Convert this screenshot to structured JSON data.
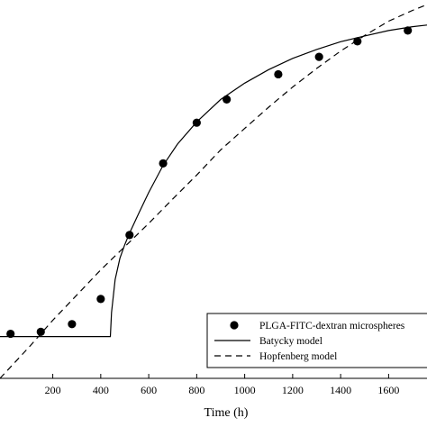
{
  "chart_data": {
    "type": "scatter",
    "xlabel": "Time (h)",
    "ylabel": "",
    "xlim": [
      -20,
      1760
    ],
    "ylim": [
      0,
      1
    ],
    "x_ticks": [
      200,
      400,
      600,
      800,
      1000,
      1200,
      1400,
      1600
    ],
    "x_tick_labels": [
      "200",
      "400",
      "600",
      "800",
      "1000",
      "1200",
      "1400",
      "1600"
    ],
    "legend_position": "bottom-right",
    "grid": false,
    "series": [
      {
        "name": "PLGA-FITC-dextran microspheres",
        "kind": "scatter",
        "color": "#000000",
        "marker": "circle",
        "x": [
          24,
          150,
          280,
          400,
          520,
          660,
          800,
          925,
          1140,
          1310,
          1470,
          1680
        ],
        "y": [
          0.115,
          0.12,
          0.14,
          0.205,
          0.37,
          0.555,
          0.66,
          0.72,
          0.785,
          0.83,
          0.87,
          0.898
        ]
      },
      {
        "name": "Batycky model",
        "kind": "line",
        "dash": "solid",
        "color": "#000000",
        "x": [
          -20,
          440,
          445,
          460,
          480,
          500,
          520,
          560,
          600,
          660,
          720,
          800,
          900,
          1000,
          1100,
          1200,
          1300,
          1400,
          1500,
          1600,
          1700,
          1760
        ],
        "y": [
          0.108,
          0.108,
          0.17,
          0.255,
          0.31,
          0.345,
          0.375,
          0.428,
          0.48,
          0.55,
          0.605,
          0.662,
          0.72,
          0.762,
          0.797,
          0.826,
          0.849,
          0.869,
          0.884,
          0.898,
          0.908,
          0.912
        ]
      },
      {
        "name": "Hopfenberg model",
        "kind": "line",
        "dash": "dashed",
        "color": "#000000",
        "x": [
          -20,
          100,
          200,
          300,
          400,
          500,
          600,
          700,
          800,
          900,
          1000,
          1100,
          1200,
          1300,
          1400,
          1500,
          1600,
          1700,
          1760
        ],
        "y": [
          0.0,
          0.08,
          0.15,
          0.215,
          0.28,
          0.34,
          0.4,
          0.463,
          0.525,
          0.59,
          0.645,
          0.7,
          0.752,
          0.8,
          0.845,
          0.885,
          0.922,
          0.95,
          0.965
        ]
      }
    ]
  }
}
